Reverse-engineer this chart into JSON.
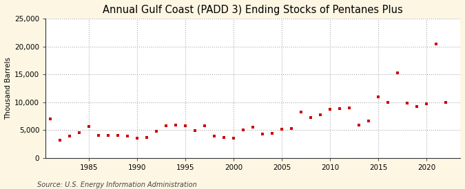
{
  "title": "Annual Gulf Coast (PADD 3) Ending Stocks of Pentanes Plus",
  "ylabel": "Thousand Barrels",
  "source": "Source: U.S. Energy Information Administration",
  "background_color": "#fdf6e3",
  "plot_bg_color": "#ffffff",
  "marker_color": "#cc0000",
  "grid_color": "#aaaaaa",
  "ylim": [
    0,
    25000
  ],
  "yticks": [
    0,
    5000,
    10000,
    15000,
    20000,
    25000
  ],
  "xlim": [
    1980.5,
    2023.5
  ],
  "xticks": [
    1985,
    1990,
    1995,
    2000,
    2005,
    2010,
    2015,
    2020
  ],
  "years": [
    1981,
    1982,
    1983,
    1984,
    1985,
    1986,
    1987,
    1988,
    1989,
    1990,
    1991,
    1992,
    1993,
    1994,
    1995,
    1996,
    1997,
    1998,
    1999,
    2000,
    2001,
    2002,
    2003,
    2004,
    2005,
    2006,
    2007,
    2008,
    2009,
    2010,
    2011,
    2012,
    2013,
    2014,
    2015,
    2016,
    2017,
    2018,
    2019,
    2020,
    2021,
    2022
  ],
  "values": [
    7000,
    3200,
    3900,
    4600,
    5700,
    4100,
    4100,
    4000,
    3900,
    3500,
    3700,
    4800,
    5800,
    5900,
    5800,
    4900,
    5800,
    3900,
    3700,
    3500,
    5000,
    5500,
    4300,
    4400,
    5200,
    5300,
    8200,
    7200,
    7700,
    8700,
    8800,
    9000,
    5900,
    6700,
    11000,
    10000,
    15300,
    9900,
    9200,
    9700,
    20500,
    10000
  ],
  "title_fontsize": 10.5,
  "ylabel_fontsize": 7.5,
  "tick_fontsize": 7.5,
  "source_fontsize": 7
}
